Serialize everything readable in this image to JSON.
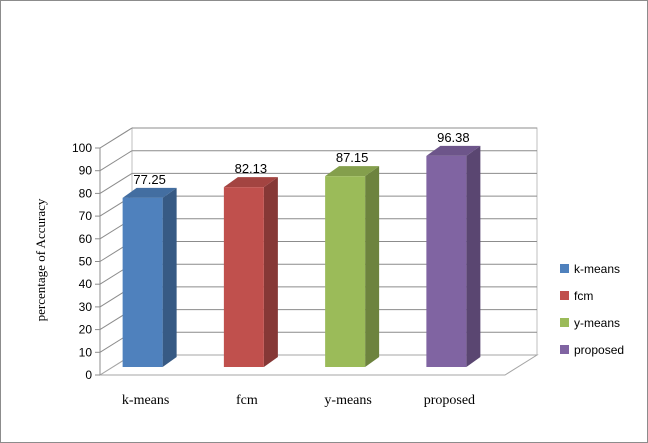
{
  "chart_data": {
    "type": "bar",
    "style": "3d",
    "categories": [
      "k-means",
      "fcm",
      "y-means",
      "proposed"
    ],
    "values": [
      77.25,
      82.13,
      87.15,
      96.38
    ],
    "data_labels": [
      "77.25",
      "82.13",
      "87.15",
      "96.38"
    ],
    "ylabel": "percentage of Accuracy",
    "xlabel": "",
    "ylim": [
      0,
      100
    ],
    "yticks": [
      0,
      10,
      20,
      30,
      40,
      50,
      60,
      70,
      80,
      90,
      100
    ],
    "grid": true,
    "legend_position": "right",
    "series": [
      {
        "name": "k-means",
        "color": "#4f81bd"
      },
      {
        "name": "fcm",
        "color": "#c0504d"
      },
      {
        "name": "y-means",
        "color": "#9bbb59"
      },
      {
        "name": "proposed",
        "color": "#8064a2"
      }
    ]
  }
}
